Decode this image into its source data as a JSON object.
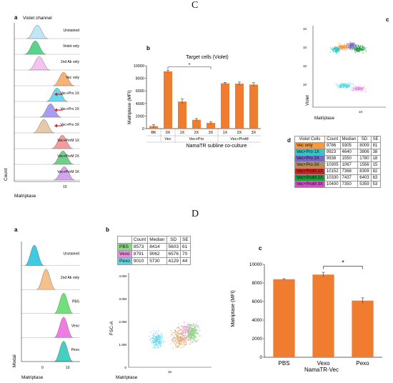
{
  "panels": {
    "C": {
      "label": "C",
      "a": {
        "letter": "a",
        "title": "Violet channel",
        "ylabel": "Count",
        "xlabel": "Matriptase",
        "histograms": [
          {
            "name": "Unstained",
            "color": "#bfe7f6"
          },
          {
            "name": "Violet only",
            "color": "#58d38a"
          },
          {
            "name": "2nd Ab only",
            "color": "#f5c3f0"
          },
          {
            "name": "Vec only",
            "color": "#f6b277"
          },
          {
            "name": "Vec+Pro 1X",
            "color": "#6bd8ef"
          },
          {
            "name": "Vec+Pro 2X",
            "color": "#a99df0"
          },
          {
            "name": "Vec+Pro 3X",
            "color": "#e6c9a6"
          },
          {
            "name": "Vec+ProM 1X",
            "color": "#f39c9c"
          },
          {
            "name": "Vec+ProM 2X",
            "color": "#6fcf8b"
          },
          {
            "name": "Vec+ProM 3X",
            "color": "#d4a5ef"
          }
        ]
      },
      "b": {
        "letter": "b",
        "chart_data": {
          "type": "bar",
          "title": "Target cells (Violet)",
          "ylabel": "Matriptase (MFI)",
          "xlabel": "NamaTR subline co-culture",
          "ylim": [
            0,
            10000
          ],
          "yticks": [
            "0",
            "2000",
            "4000",
            "6000",
            "8000",
            "10000"
          ],
          "categories": [
            "BK",
            "0X",
            "1X",
            "2X",
            "3X",
            "1X",
            "2X",
            "3X"
          ],
          "groups": [
            "Vec",
            "Vec+Pro",
            "Vec+ProM"
          ],
          "values": [
            400,
            9100,
            4300,
            1400,
            900,
            7200,
            7150,
            7000
          ],
          "errors": [
            250,
            200,
            400,
            200,
            200,
            150,
            250,
            300
          ],
          "significance": "*",
          "bar_color": "#f07c30"
        }
      },
      "c": {
        "letter": "c",
        "ylabel": "Violet",
        "xlabel": "Matriptase"
      },
      "d": {
        "letter": "d",
        "headers": [
          "Violet Cells",
          "Count",
          "Median",
          "SD",
          "SE"
        ],
        "rows": [
          {
            "name": "Vec only",
            "count": "9786",
            "median": "9305",
            "sd": "8009",
            "se": "81",
            "color": "#f79a3e"
          },
          {
            "name": "Vec+Pro 1X",
            "count": "9923",
            "median": "4640",
            "sd": "3806",
            "se": "38",
            "color": "#31c6c8"
          },
          {
            "name": "Vec+Pro 2X",
            "count": "9938",
            "median": "1550",
            "sd": "1780",
            "se": "18",
            "color": "#7a68c8"
          },
          {
            "name": "Vec+Pro 3X",
            "count": "10305",
            "median": "1067",
            "sd": "1556",
            "se": "15",
            "color": "#b98a5a"
          },
          {
            "name": "Vec+ProM 1X",
            "count": "10152",
            "median": "7368",
            "sd": "8309",
            "se": "82",
            "color": "#d62020"
          },
          {
            "name": "Vec+ProM 2X",
            "count": "10330",
            "median": "7437",
            "sd": "6403",
            "se": "63",
            "color": "#1d9a3a"
          },
          {
            "name": "Vec+ProM 3X",
            "count": "10400",
            "median": "7350",
            "sd": "5359",
            "se": "53",
            "color": "#d64fc9"
          }
        ]
      }
    },
    "D": {
      "label": "D",
      "a": {
        "letter": "a",
        "ylabel": "Modal",
        "xlabel": "Matriptase",
        "histograms": [
          {
            "name": "Unstained",
            "color": "#3fc9e3"
          },
          {
            "name": "2nd Ab only",
            "color": "#f6c08c"
          },
          {
            "name": "PBS",
            "color": "#6fe07a"
          },
          {
            "name": "Vexo",
            "color": "#ef7ce0"
          },
          {
            "name": "Pexo",
            "color": "#45cfc0"
          }
        ]
      },
      "b": {
        "letter": "b",
        "ylabel": "FSC-A",
        "xlabel": "Matriptase",
        "yticks": [
          "4.0M",
          "3.0M",
          "2.0M",
          "1.0M",
          "0"
        ],
        "table_headers": [
          "",
          "Count",
          "Median",
          "SD",
          "SE"
        ],
        "table_rows": [
          {
            "name": "PBS",
            "count": "8573",
            "median": "8414",
            "sd": "5603",
            "se": "61",
            "color": "#7ee27a"
          },
          {
            "name": "Vexo",
            "count": "8791",
            "median": "9062",
            "sd": "6576",
            "se": "70",
            "color": "#ef8be0"
          },
          {
            "name": "Pexo",
            "count": "9010",
            "median": "5730",
            "sd": "4129",
            "se": "44",
            "color": "#5fd6e8"
          }
        ]
      },
      "c": {
        "letter": "c",
        "chart_data": {
          "type": "bar",
          "ylabel": "Matriptase (MFI)",
          "xlabel": "NamaTR-Vec",
          "ylim": [
            0,
            10000
          ],
          "yticks": [
            "0",
            "2000",
            "4000",
            "6000",
            "8000",
            "10000"
          ],
          "categories": [
            "PBS",
            "Vexo",
            "Pexo"
          ],
          "values": [
            8400,
            8900,
            6100
          ],
          "errors": [
            60,
            250,
            300
          ],
          "significance": "*",
          "bar_color": "#f07c30"
        }
      }
    }
  }
}
